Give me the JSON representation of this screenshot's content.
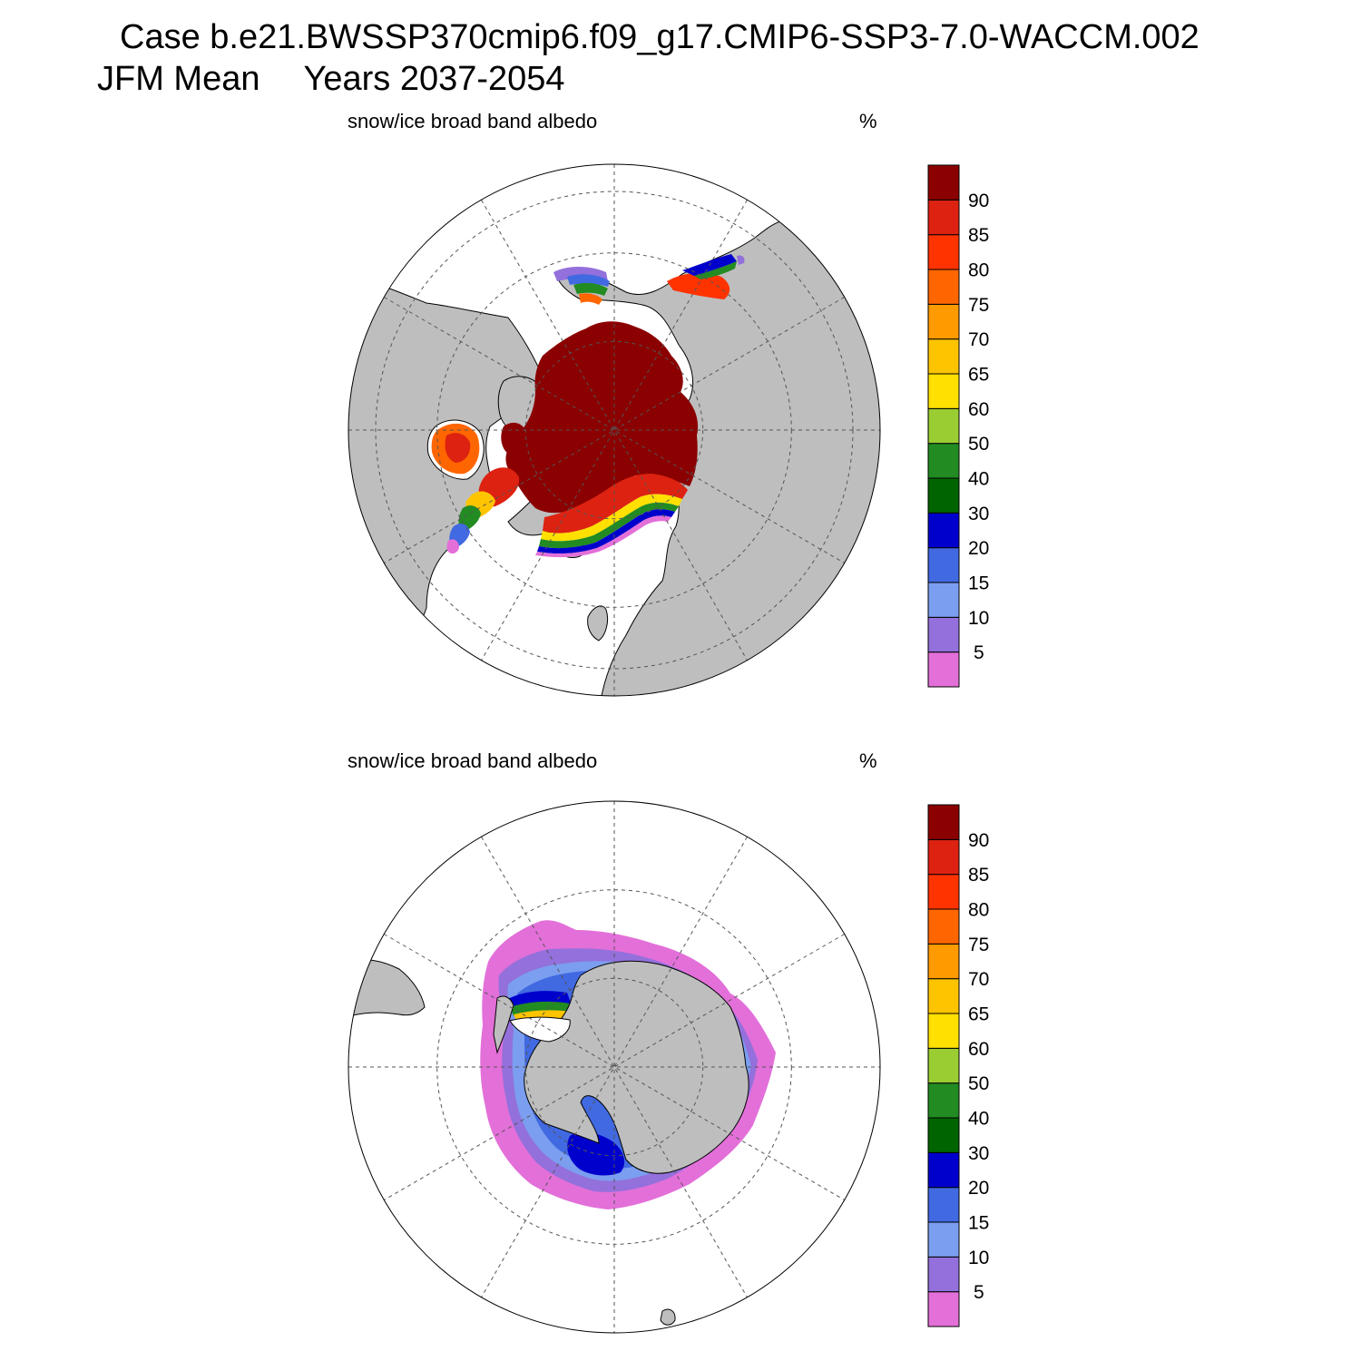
{
  "header": {
    "case_line": "Case b.e21.BWSSP370cmip6.f09_g17.CMIP6-SSP3-7.0-WACCM.002",
    "season": "JFM Mean",
    "years": "Years 2037-2054"
  },
  "colors": {
    "land": "#bebebe",
    "ocean": "#ffffff",
    "scale": [
      "#e36fd9",
      "#9370db",
      "#7b9ef0",
      "#4169e1",
      "#0000cd",
      "#006400",
      "#228b22",
      "#9acd32",
      "#ffe000",
      "#ffc400",
      "#ff9a00",
      "#ff6600",
      "#ff3300",
      "#dd2211",
      "#8b0000"
    ]
  },
  "panels": [
    {
      "id": "north",
      "hemisphere": "Northern",
      "field_label": "snow/ice broad band albedo",
      "units": "%",
      "colorbar_labels": [
        "5",
        "10",
        "15",
        "20",
        "30",
        "40",
        "50",
        "60",
        "65",
        "70",
        "75",
        "80",
        "85",
        "90"
      ]
    },
    {
      "id": "south",
      "hemisphere": "Southern",
      "field_label": "snow/ice broad band albedo",
      "units": "%",
      "colorbar_labels": [
        "5",
        "10",
        "15",
        "20",
        "30",
        "40",
        "50",
        "60",
        "65",
        "70",
        "75",
        "80",
        "85",
        "90"
      ]
    }
  ]
}
